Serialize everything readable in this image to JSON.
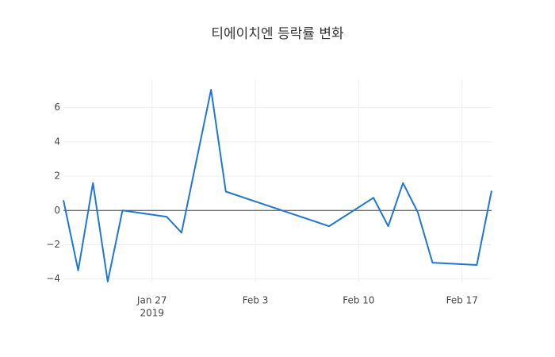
{
  "chart_data": {
    "type": "line",
    "title": "티에이치엔 등락률 변화",
    "x": [
      "2019-01-21",
      "2019-01-22",
      "2019-01-23",
      "2019-01-24",
      "2019-01-25",
      "2019-01-28",
      "2019-01-29",
      "2019-01-31",
      "2019-02-01",
      "2019-02-08",
      "2019-02-11",
      "2019-02-12",
      "2019-02-13",
      "2019-02-14",
      "2019-02-15",
      "2019-02-18",
      "2019-02-19"
    ],
    "series": [
      {
        "color": "#1f77d4",
        "values": [
          0.6,
          -3.5,
          1.6,
          -4.15,
          0,
          -0.37,
          -1.3,
          7.05,
          1.1,
          -0.92,
          0.74,
          -0.92,
          1.6,
          -0.1,
          -3.05,
          -3.18,
          1.15
        ]
      }
    ],
    "xlim": [
      "2019-01-21",
      "2019-02-19"
    ],
    "xticks": [
      {
        "value": "2019-01-27",
        "label": "Jan 27",
        "sublabel": "2019"
      },
      {
        "value": "2019-02-03",
        "label": "Feb 3"
      },
      {
        "value": "2019-02-10",
        "label": "Feb 10"
      },
      {
        "value": "2019-02-17",
        "label": "Feb 17"
      }
    ],
    "ylim": [
      -4.2,
      7.65
    ],
    "yticks": [
      {
        "value": -4,
        "label": "−4"
      },
      {
        "value": -2,
        "label": "−2"
      },
      0,
      2,
      4,
      6
    ],
    "grid": true,
    "zeroline": true
  }
}
